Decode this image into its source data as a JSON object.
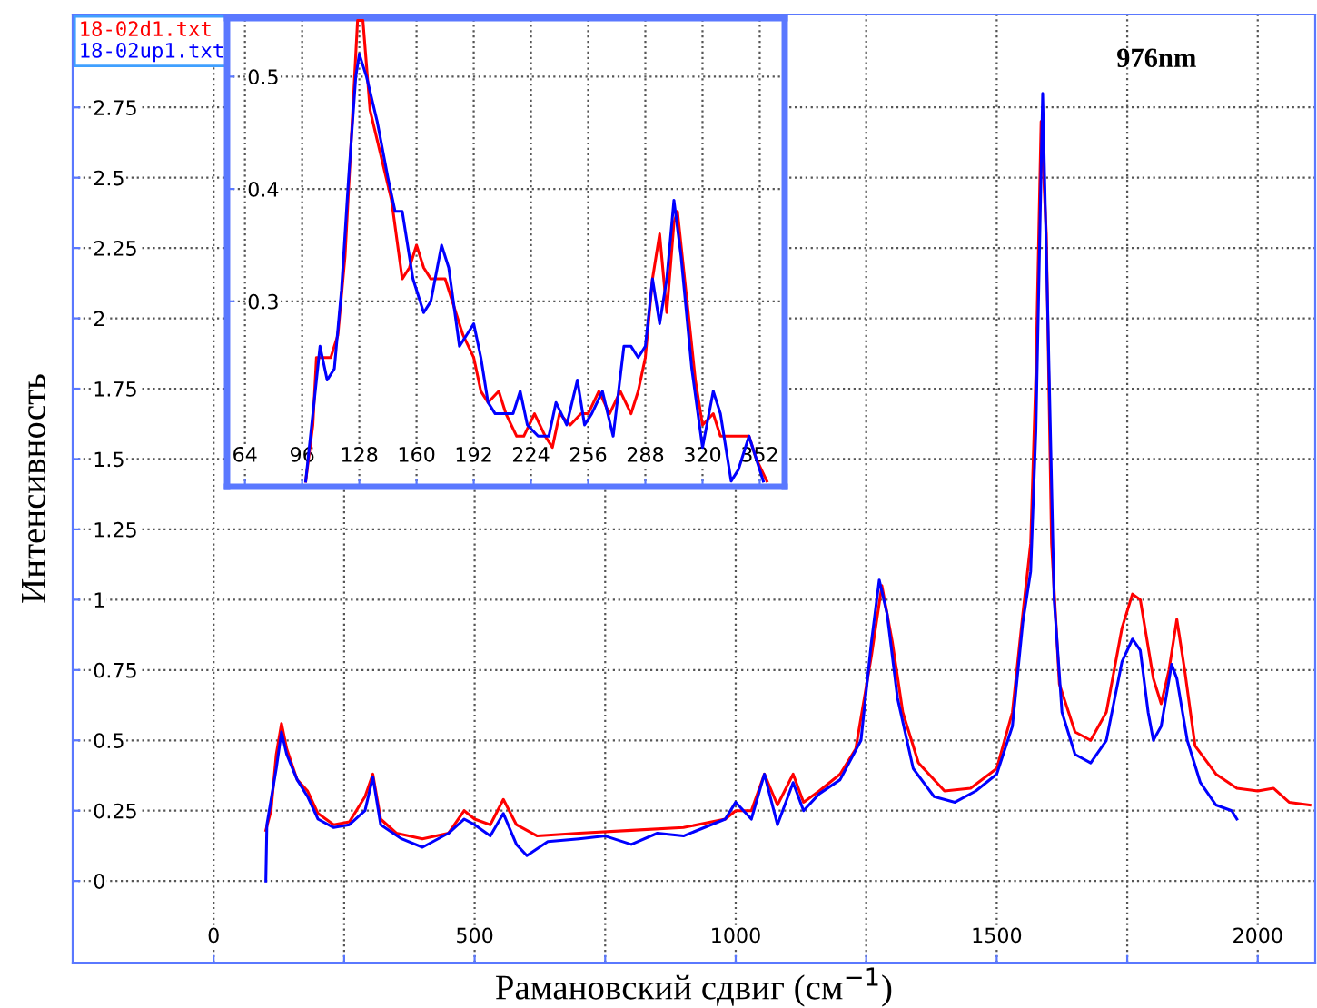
{
  "chart_data": [
    {
      "type": "line",
      "xlabel": "Рамановский сдвиг (см$^{−1}$)",
      "ylabel": "Интенсивность",
      "annotations": [
        "976nm"
      ],
      "xlim": [
        -270,
        2110
      ],
      "ylim": [
        -0.29,
        3.08
      ],
      "xticks": [
        0,
        {
          "value": 250,
          "label": null
        },
        500,
        {
          "value": 750,
          "label": null
        },
        1000,
        {
          "value": 1250,
          "label": null
        },
        1500,
        {
          "value": 1750,
          "label": null
        },
        2000
      ],
      "yticks": [
        0,
        0.25,
        0.5,
        0.75,
        1,
        1.25,
        1.5,
        1.75,
        2,
        2.25,
        2.5,
        2.75
      ],
      "grid": true,
      "legend": "top left",
      "line_style": "solid",
      "marker": "none",
      "series": [
        {
          "name": "18-02d1.txt",
          "color": "#ff0000",
          "x": [
            100,
            110,
            120,
            130,
            140,
            160,
            180,
            200,
            230,
            260,
            290,
            305,
            320,
            350,
            400,
            450,
            480,
            500,
            530,
            555,
            580,
            620,
            700,
            800,
            900,
            980,
            1000,
            1030,
            1055,
            1080,
            1110,
            1130,
            1160,
            1200,
            1230,
            1260,
            1280,
            1300,
            1320,
            1350,
            1400,
            1450,
            1500,
            1530,
            1550,
            1565,
            1575,
            1585,
            1595,
            1605,
            1620,
            1650,
            1680,
            1710,
            1740,
            1760,
            1775,
            1800,
            1815,
            1830,
            1845,
            1860,
            1880,
            1920,
            1960,
            2000,
            2030,
            2060,
            2100
          ],
          "values": [
            0.18,
            0.25,
            0.45,
            0.56,
            0.47,
            0.36,
            0.32,
            0.24,
            0.2,
            0.21,
            0.3,
            0.38,
            0.22,
            0.17,
            0.15,
            0.17,
            0.25,
            0.22,
            0.2,
            0.29,
            0.2,
            0.16,
            0.17,
            0.18,
            0.19,
            0.22,
            0.25,
            0.25,
            0.38,
            0.27,
            0.38,
            0.28,
            0.32,
            0.38,
            0.47,
            0.8,
            1.05,
            0.85,
            0.6,
            0.42,
            0.32,
            0.33,
            0.4,
            0.6,
            0.95,
            1.2,
            1.8,
            2.7,
            2.3,
            1.2,
            0.7,
            0.53,
            0.5,
            0.6,
            0.9,
            1.02,
            1.0,
            0.72,
            0.63,
            0.75,
            0.93,
            0.75,
            0.48,
            0.38,
            0.33,
            0.32,
            0.33,
            0.28,
            0.27
          ]
        },
        {
          "name": "18-02up1.txt",
          "color": "#0000ff",
          "x": [
            100,
            102,
            120,
            130,
            140,
            160,
            180,
            200,
            230,
            260,
            290,
            305,
            320,
            360,
            400,
            450,
            480,
            500,
            530,
            555,
            580,
            600,
            640,
            700,
            750,
            800,
            850,
            900,
            980,
            1000,
            1030,
            1055,
            1080,
            1110,
            1130,
            1160,
            1200,
            1240,
            1260,
            1275,
            1290,
            1310,
            1340,
            1380,
            1420,
            1460,
            1500,
            1530,
            1550,
            1565,
            1575,
            1588,
            1598,
            1610,
            1625,
            1650,
            1680,
            1710,
            1740,
            1760,
            1775,
            1790,
            1800,
            1815,
            1835,
            1845,
            1865,
            1890,
            1920,
            1950,
            1960
          ],
          "values": [
            0,
            0.2,
            0.4,
            0.53,
            0.45,
            0.36,
            0.3,
            0.22,
            0.19,
            0.2,
            0.25,
            0.37,
            0.2,
            0.15,
            0.12,
            0.17,
            0.22,
            0.2,
            0.16,
            0.24,
            0.13,
            0.09,
            0.14,
            0.15,
            0.16,
            0.13,
            0.17,
            0.16,
            0.22,
            0.28,
            0.22,
            0.38,
            0.2,
            0.35,
            0.25,
            0.31,
            0.36,
            0.5,
            0.85,
            1.07,
            0.95,
            0.65,
            0.4,
            0.3,
            0.28,
            0.32,
            0.38,
            0.55,
            0.92,
            1.1,
            1.6,
            2.8,
            2.0,
            1.0,
            0.6,
            0.45,
            0.42,
            0.5,
            0.78,
            0.86,
            0.82,
            0.6,
            0.5,
            0.55,
            0.77,
            0.72,
            0.5,
            0.35,
            0.27,
            0.25,
            0.22
          ]
        }
      ]
    },
    {
      "type": "line",
      "xlim": [
        54,
        366
      ],
      "ylim": [
        0.135,
        0.552
      ],
      "xticks": [
        64,
        96,
        128,
        160,
        192,
        224,
        256,
        288,
        320,
        352
      ],
      "yticks": [
        0.3,
        0.4,
        0.5
      ],
      "grid": true,
      "line_style": "solid",
      "marker": "none",
      "series": [
        {
          "color": "#ff0000",
          "x": [
            98,
            102,
            104,
            108,
            112,
            116,
            120,
            124,
            127,
            130,
            134,
            140,
            146,
            152,
            156,
            160,
            164,
            168,
            172,
            176,
            180,
            186,
            192,
            196,
            200,
            206,
            210,
            216,
            220,
            226,
            232,
            236,
            240,
            246,
            252,
            256,
            262,
            268,
            274,
            280,
            284,
            288,
            292,
            296,
            300,
            304,
            306,
            310,
            316,
            320,
            326,
            330,
            336,
            340,
            346,
            350,
            356
          ],
          "values": [
            0.14,
            0.19,
            0.25,
            0.25,
            0.25,
            0.27,
            0.34,
            0.46,
            0.55,
            0.55,
            0.47,
            0.43,
            0.39,
            0.32,
            0.33,
            0.35,
            0.33,
            0.32,
            0.32,
            0.32,
            0.3,
            0.27,
            0.25,
            0.22,
            0.21,
            0.22,
            0.2,
            0.18,
            0.18,
            0.2,
            0.18,
            0.17,
            0.2,
            0.19,
            0.2,
            0.2,
            0.22,
            0.2,
            0.22,
            0.2,
            0.22,
            0.25,
            0.32,
            0.36,
            0.29,
            0.37,
            0.38,
            0.32,
            0.23,
            0.19,
            0.2,
            0.18,
            0.18,
            0.18,
            0.18,
            0.16,
            0.14
          ]
        },
        {
          "color": "#0000ff",
          "x": [
            98,
            102,
            106,
            110,
            114,
            118,
            122,
            126,
            128,
            132,
            138,
            144,
            148,
            152,
            158,
            164,
            168,
            174,
            178,
            184,
            188,
            192,
            196,
            200,
            204,
            208,
            214,
            218,
            222,
            228,
            234,
            238,
            244,
            250,
            254,
            258,
            264,
            270,
            276,
            280,
            284,
            288,
            292,
            296,
            300,
            304,
            308,
            314,
            320,
            326,
            330,
            336,
            340,
            346,
            350,
            354
          ],
          "values": [
            0.14,
            0.2,
            0.26,
            0.23,
            0.24,
            0.31,
            0.41,
            0.5,
            0.52,
            0.5,
            0.46,
            0.41,
            0.38,
            0.38,
            0.32,
            0.29,
            0.3,
            0.35,
            0.33,
            0.26,
            0.27,
            0.28,
            0.25,
            0.21,
            0.2,
            0.2,
            0.2,
            0.22,
            0.19,
            0.18,
            0.18,
            0.21,
            0.19,
            0.23,
            0.19,
            0.2,
            0.22,
            0.18,
            0.26,
            0.26,
            0.25,
            0.26,
            0.32,
            0.28,
            0.32,
            0.39,
            0.34,
            0.24,
            0.17,
            0.22,
            0.2,
            0.14,
            0.15,
            0.18,
            0.16,
            0.14
          ]
        }
      ]
    }
  ]
}
